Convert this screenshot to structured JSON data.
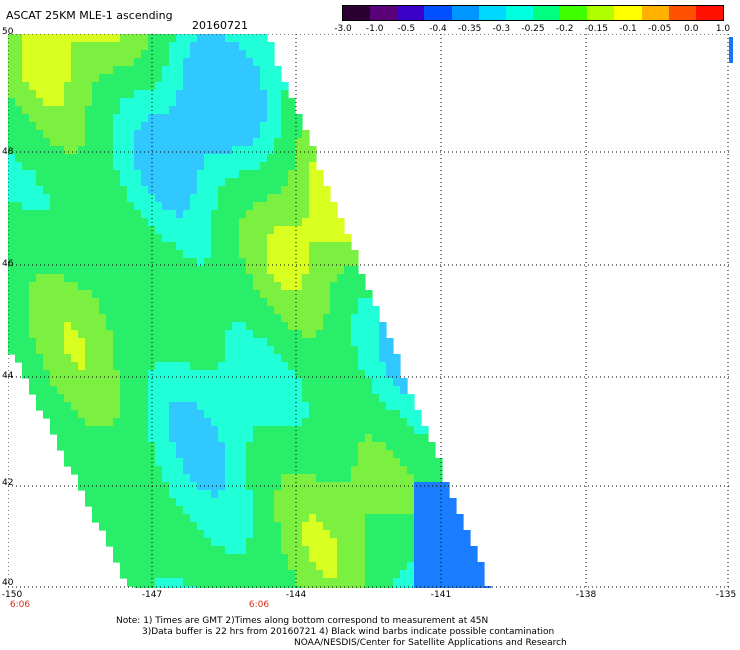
{
  "header": {
    "title": "ASCAT 25KM MLE-1 ascending",
    "date": "20160721"
  },
  "colorbar": {
    "labels": [
      "-3.0",
      "-1.0",
      "-0.5",
      "-0.4",
      "-0.35",
      "-0.3",
      "-0.25",
      "-0.2",
      "-0.15",
      "-0.1",
      "-0.05",
      "0.0",
      "1.0"
    ],
    "colors": [
      "#2a0030",
      "#5a0078",
      "#3a00c8",
      "#0050ff",
      "#0096ff",
      "#00d8ff",
      "#00ffe0",
      "#00ff80",
      "#40ff00",
      "#b0ff00",
      "#ffff00",
      "#ffb000",
      "#ff5000",
      "#ff1000"
    ]
  },
  "map": {
    "lat_labels": [
      "50",
      "48",
      "46",
      "44",
      "42",
      "40"
    ],
    "lon_labels": [
      "-150",
      "-147",
      "-144",
      "-141",
      "-138",
      "-135"
    ],
    "time_labels": [
      "6:06",
      "6:06"
    ],
    "extent": {
      "lon": [
        -150,
        -135
      ],
      "lat": [
        40,
        50
      ]
    },
    "swath": "ascending pass, NW to SE diagonal edge",
    "dominant_color": "green"
  },
  "notes": {
    "line1": "Note: 1) Times are GMT 2)Times along bottom correspond to measurement at 45N",
    "line2": "3)Data buffer is 22 hrs from 20160721 4) Black wind barbs indicate possible contamination",
    "line3": "NOAA/NESDIS/Center for Satellite Applications and Research"
  }
}
